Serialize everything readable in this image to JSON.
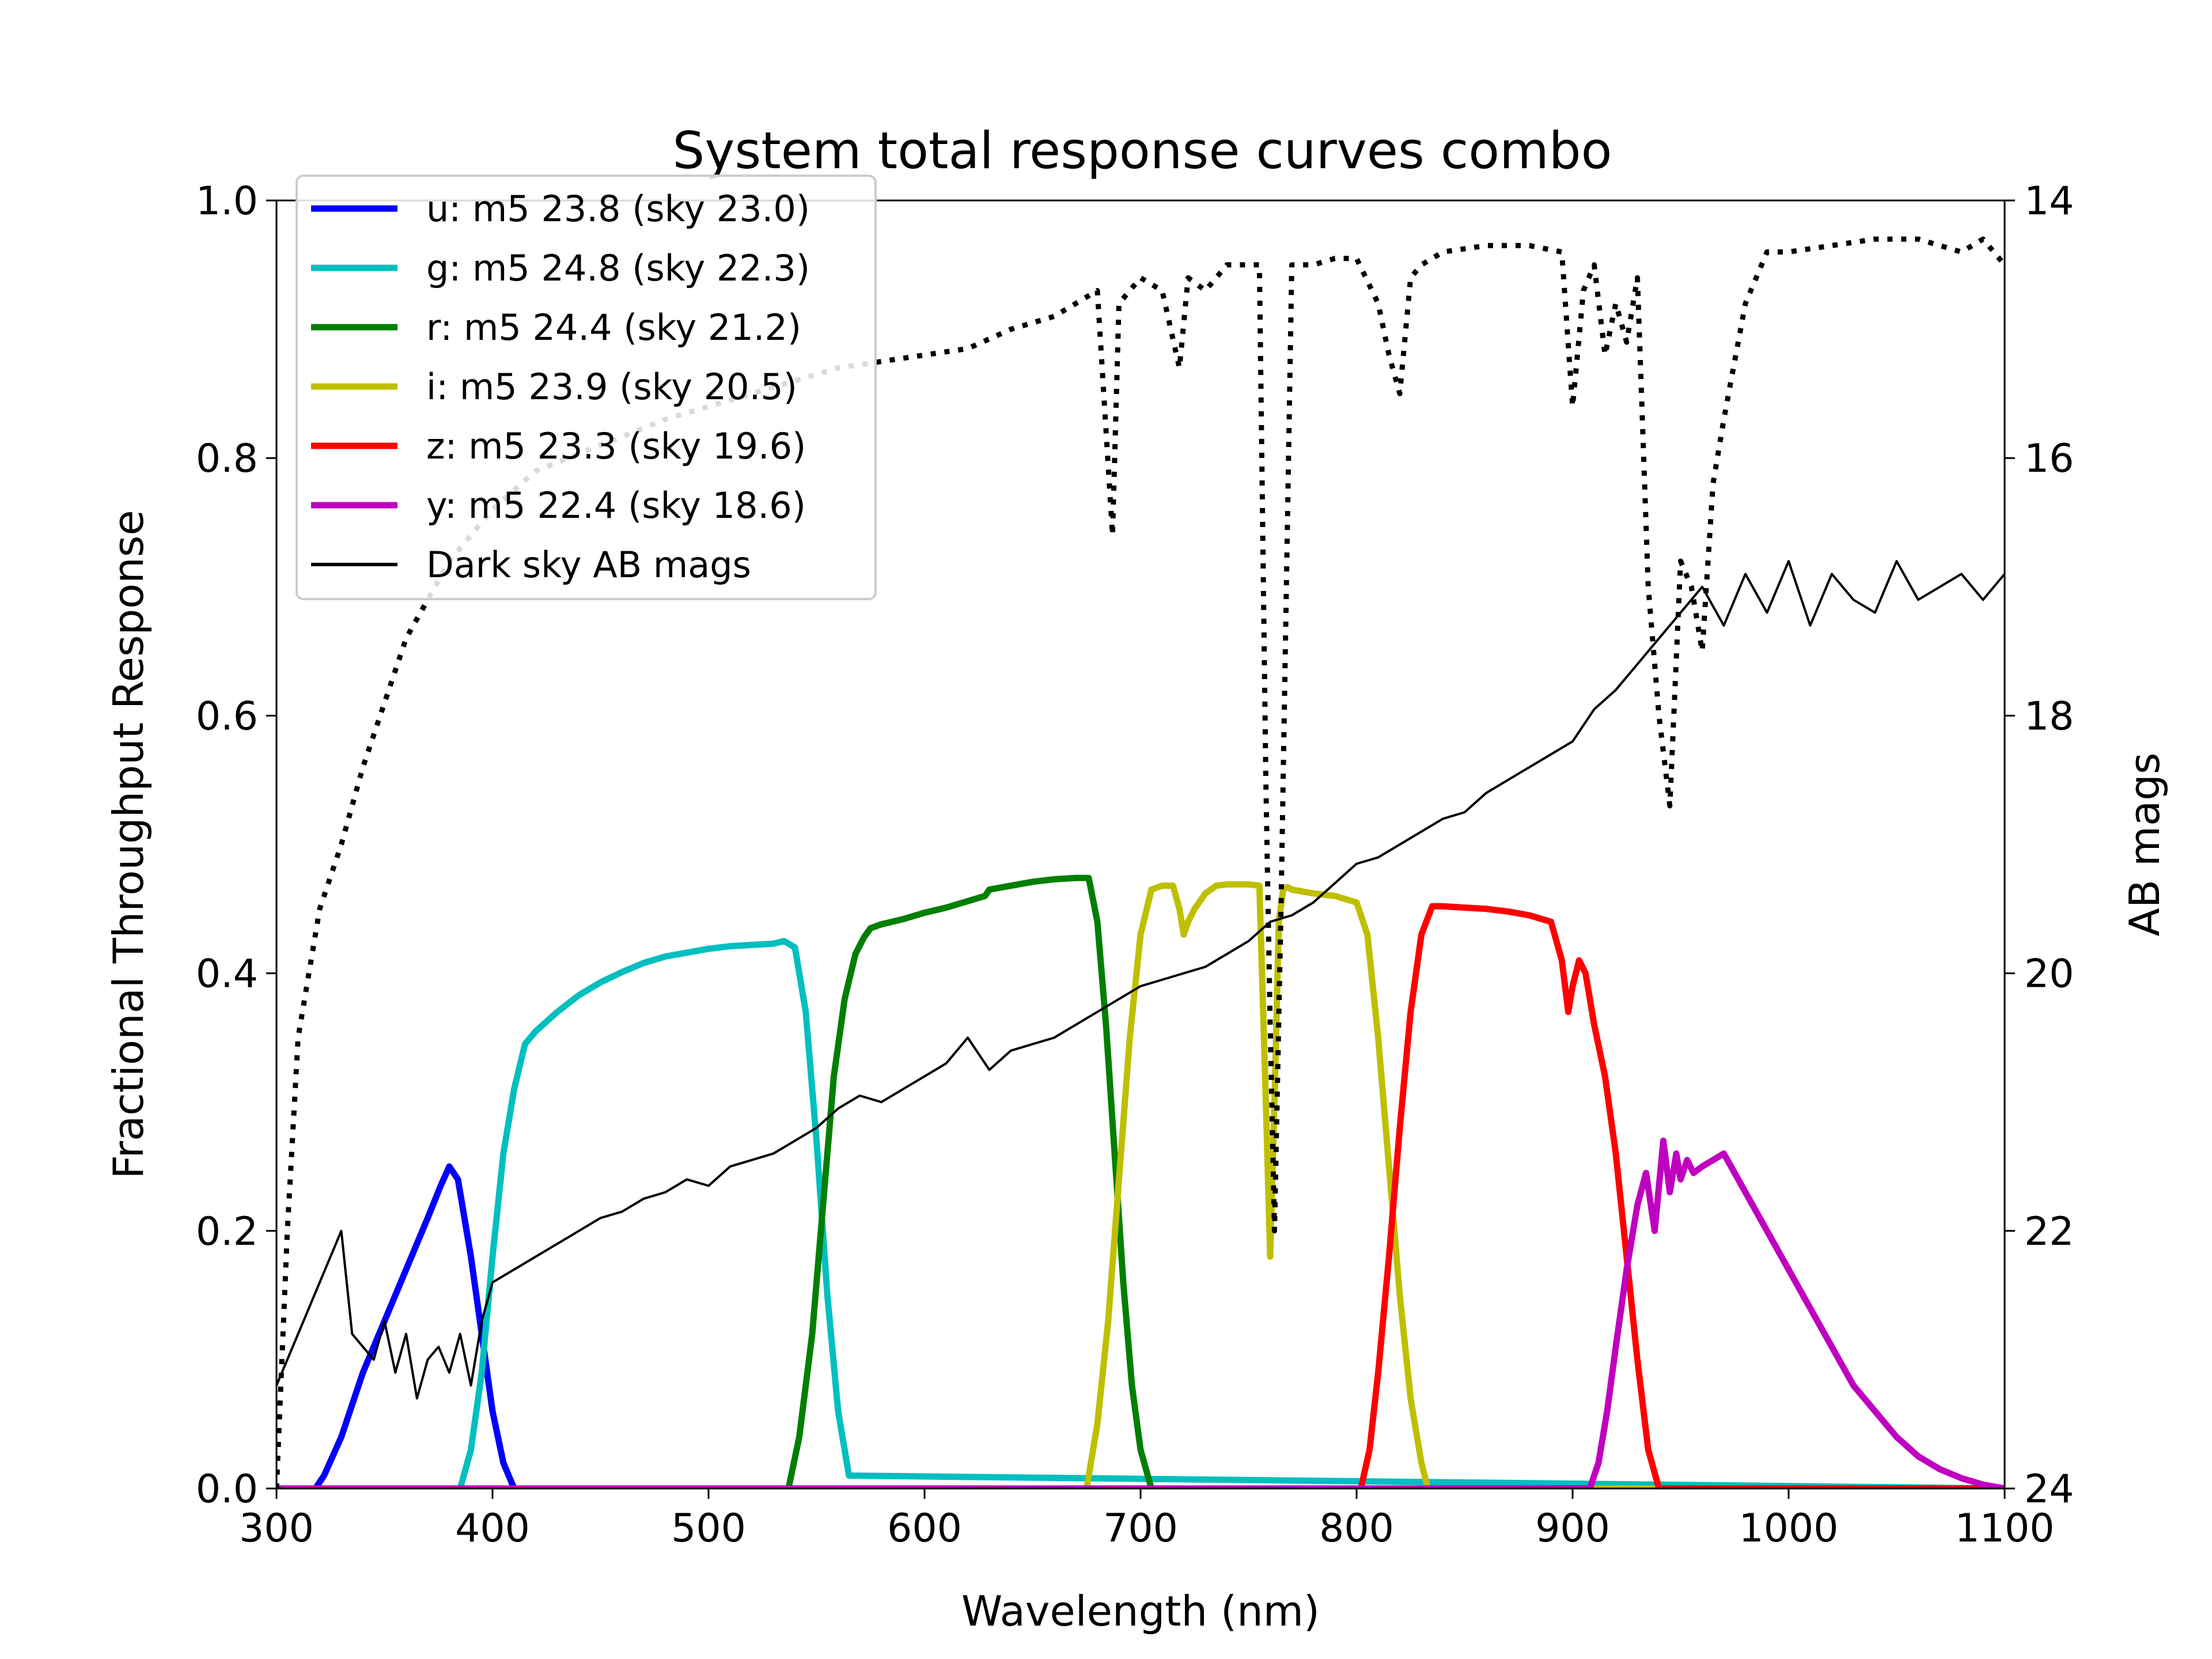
{
  "chart_data": {
    "type": "line",
    "title": "System total response curves combo",
    "xlabel": "Wavelength (nm)",
    "ylabel": "Fractional Throughput Response",
    "y2label": "AB mags",
    "xlim": [
      300,
      1100
    ],
    "ylim": [
      0,
      1.0
    ],
    "y2lim": [
      24,
      14
    ],
    "xticks": [
      "300",
      "400",
      "500",
      "600",
      "700",
      "800",
      "900",
      "1000",
      "1100"
    ],
    "yticks": [
      "0.0",
      "0.2",
      "0.4",
      "0.6",
      "0.8",
      "1.0"
    ],
    "y2ticks": [
      "24",
      "22",
      "20",
      "18",
      "16",
      "14"
    ],
    "legend_position": "upper-left",
    "grid": false,
    "series": [
      {
        "name": "u: m5 23.8 (sky 23.0)",
        "color": "#0000ff",
        "x": [
          300,
          318,
          322,
          330,
          340,
          350,
          360,
          370,
          376,
          380,
          384,
          390,
          395,
          400,
          405,
          410,
          1100
        ],
        "y": [
          0,
          0,
          0.01,
          0.04,
          0.09,
          0.13,
          0.17,
          0.21,
          0.235,
          0.25,
          0.24,
          0.18,
          0.12,
          0.06,
          0.02,
          0,
          0
        ]
      },
      {
        "name": "g: m5 24.8 (sky 22.3)",
        "color": "#00bfbf",
        "x": [
          300,
          385,
          390,
          395,
          400,
          405,
          410,
          415,
          420,
          430,
          440,
          450,
          460,
          470,
          480,
          490,
          500,
          510,
          520,
          530,
          535,
          540,
          545,
          550,
          555,
          560,
          565,
          1100
        ],
        "y": [
          0,
          0,
          0.03,
          0.09,
          0.18,
          0.26,
          0.31,
          0.345,
          0.355,
          0.37,
          0.383,
          0.393,
          0.401,
          0.408,
          0.413,
          0.416,
          0.419,
          0.421,
          0.422,
          0.423,
          0.425,
          0.42,
          0.37,
          0.27,
          0.15,
          0.06,
          0.01,
          0
        ]
      },
      {
        "name": "r: m5 24.4 (sky 21.2)",
        "color": "#007f00",
        "x": [
          300,
          537,
          542,
          548,
          553,
          558,
          563,
          568,
          572,
          575,
          580,
          590,
          600,
          610,
          620,
          628,
          630,
          640,
          650,
          660,
          670,
          676,
          680,
          684,
          688,
          692,
          696,
          700,
          705,
          1100
        ],
        "y": [
          0,
          0,
          0.04,
          0.12,
          0.22,
          0.32,
          0.38,
          0.415,
          0.428,
          0.435,
          0.438,
          0.442,
          0.447,
          0.451,
          0.456,
          0.46,
          0.465,
          0.468,
          0.471,
          0.473,
          0.474,
          0.474,
          0.44,
          0.36,
          0.26,
          0.16,
          0.08,
          0.03,
          0,
          0
        ]
      },
      {
        "name": "i: m5 23.9 (sky 20.5)",
        "color": "#bfbf00",
        "x": [
          300,
          675,
          680,
          685,
          690,
          695,
          700,
          705,
          710,
          715,
          718,
          720,
          722,
          725,
          730,
          735,
          740,
          750,
          755,
          758,
          760,
          762,
          764,
          766,
          768,
          770,
          780,
          790,
          800,
          805,
          810,
          815,
          820,
          825,
          830,
          833,
          1100
        ],
        "y": [
          0,
          0,
          0.05,
          0.13,
          0.24,
          0.35,
          0.43,
          0.465,
          0.468,
          0.468,
          0.45,
          0.43,
          0.44,
          0.45,
          0.462,
          0.468,
          0.469,
          0.469,
          0.468,
          0.3,
          0.18,
          0.3,
          0.44,
          0.465,
          0.467,
          0.465,
          0.462,
          0.46,
          0.455,
          0.43,
          0.35,
          0.25,
          0.15,
          0.07,
          0.02,
          0,
          0
        ]
      },
      {
        "name": "z: m5 23.3 (sky 19.6)",
        "color": "#ff0000",
        "x": [
          300,
          802,
          806,
          810,
          815,
          820,
          825,
          830,
          835,
          840,
          850,
          860,
          870,
          880,
          890,
          895,
          898,
          900,
          903,
          906,
          910,
          915,
          920,
          925,
          930,
          935,
          940,
          1100
        ],
        "y": [
          0,
          0,
          0.03,
          0.09,
          0.18,
          0.28,
          0.37,
          0.43,
          0.452,
          0.452,
          0.451,
          0.45,
          0.448,
          0.445,
          0.44,
          0.41,
          0.37,
          0.39,
          0.41,
          0.4,
          0.36,
          0.32,
          0.26,
          0.18,
          0.1,
          0.03,
          0,
          0
        ]
      },
      {
        "name": "y: m5 22.4 (sky 18.6)",
        "color": "#bf00bf",
        "x": [
          300,
          908,
          912,
          916,
          920,
          925,
          930,
          934,
          938,
          940,
          942,
          945,
          948,
          950,
          953,
          956,
          960,
          965,
          970,
          975,
          980,
          985,
          990,
          1000,
          1010,
          1020,
          1030,
          1040,
          1050,
          1060,
          1070,
          1080,
          1090,
          1100
        ],
        "y": [
          0,
          0,
          0.02,
          0.06,
          0.11,
          0.17,
          0.22,
          0.245,
          0.2,
          0.235,
          0.27,
          0.23,
          0.26,
          0.24,
          0.255,
          0.245,
          0.25,
          0.255,
          0.26,
          0.245,
          0.23,
          0.215,
          0.2,
          0.17,
          0.14,
          0.11,
          0.08,
          0.06,
          0.04,
          0.025,
          0.015,
          0.008,
          0.003,
          0
        ]
      },
      {
        "name": "Dark sky AB mags",
        "color": "#000000",
        "axis": "right",
        "x": [
          300,
          310,
          320,
          330,
          335,
          340,
          345,
          350,
          355,
          360,
          365,
          370,
          375,
          380,
          385,
          390,
          395,
          400,
          410,
          420,
          430,
          440,
          450,
          460,
          470,
          480,
          490,
          500,
          510,
          520,
          530,
          540,
          550,
          560,
          570,
          580,
          590,
          600,
          610,
          620,
          630,
          640,
          650,
          660,
          670,
          680,
          690,
          700,
          710,
          720,
          730,
          740,
          750,
          760,
          770,
          780,
          790,
          800,
          810,
          820,
          830,
          840,
          850,
          860,
          870,
          880,
          890,
          900,
          910,
          920,
          930,
          940,
          950,
          960,
          970,
          980,
          990,
          1000,
          1010,
          1020,
          1030,
          1040,
          1050,
          1060,
          1070,
          1080,
          1090,
          1100
        ],
        "y": [
          23.2,
          22.8,
          22.4,
          22.0,
          22.8,
          22.9,
          23.0,
          22.7,
          23.1,
          22.8,
          23.3,
          23.0,
          22.9,
          23.1,
          22.8,
          23.2,
          22.7,
          22.4,
          22.3,
          22.2,
          22.1,
          22.0,
          21.9,
          21.85,
          21.75,
          21.7,
          21.6,
          21.65,
          21.5,
          21.45,
          21.4,
          21.3,
          21.2,
          21.05,
          20.95,
          21.0,
          20.9,
          20.8,
          20.7,
          20.5,
          20.75,
          20.6,
          20.55,
          20.5,
          20.4,
          20.3,
          20.2,
          20.1,
          20.05,
          20.0,
          19.95,
          19.85,
          19.75,
          19.6,
          19.55,
          19.45,
          19.3,
          19.15,
          19.1,
          19.0,
          18.9,
          18.8,
          18.75,
          18.6,
          18.5,
          18.4,
          18.3,
          18.2,
          17.95,
          17.8,
          17.6,
          17.4,
          17.2,
          17.0,
          17.3,
          16.9,
          17.2,
          16.8,
          17.3,
          16.9,
          17.1,
          17.2,
          16.8,
          17.1,
          17.0,
          16.9,
          17.1,
          16.9
        ]
      },
      {
        "name": "",
        "color": "#000000",
        "style": "dotted",
        "x": [
          300,
          305,
          310,
          320,
          330,
          340,
          350,
          360,
          380,
          400,
          420,
          450,
          480,
          500,
          520,
          540,
          560,
          580,
          600,
          620,
          640,
          660,
          680,
          687,
          690,
          700,
          710,
          718,
          722,
          730,
          740,
          755,
          758,
          760,
          762,
          765,
          770,
          780,
          790,
          800,
          810,
          815,
          820,
          825,
          830,
          840,
          860,
          880,
          895,
          900,
          905,
          910,
          915,
          920,
          925,
          930,
          935,
          940,
          945,
          950,
          955,
          960,
          965,
          970,
          980,
          990,
          1000,
          1020,
          1040,
          1060,
          1080,
          1090,
          1100
        ],
        "y": [
          0.0,
          0.2,
          0.35,
          0.45,
          0.5,
          0.56,
          0.61,
          0.66,
          0.72,
          0.76,
          0.79,
          0.81,
          0.83,
          0.84,
          0.85,
          0.86,
          0.87,
          0.875,
          0.88,
          0.885,
          0.9,
          0.91,
          0.93,
          0.74,
          0.92,
          0.94,
          0.93,
          0.87,
          0.94,
          0.93,
          0.95,
          0.95,
          0.55,
          0.36,
          0.2,
          0.45,
          0.95,
          0.95,
          0.955,
          0.955,
          0.92,
          0.88,
          0.85,
          0.94,
          0.95,
          0.96,
          0.965,
          0.965,
          0.96,
          0.84,
          0.93,
          0.95,
          0.88,
          0.92,
          0.89,
          0.94,
          0.7,
          0.6,
          0.53,
          0.72,
          0.7,
          0.65,
          0.78,
          0.83,
          0.92,
          0.96,
          0.96,
          0.965,
          0.97,
          0.97,
          0.96,
          0.97,
          0.95
        ]
      }
    ]
  }
}
